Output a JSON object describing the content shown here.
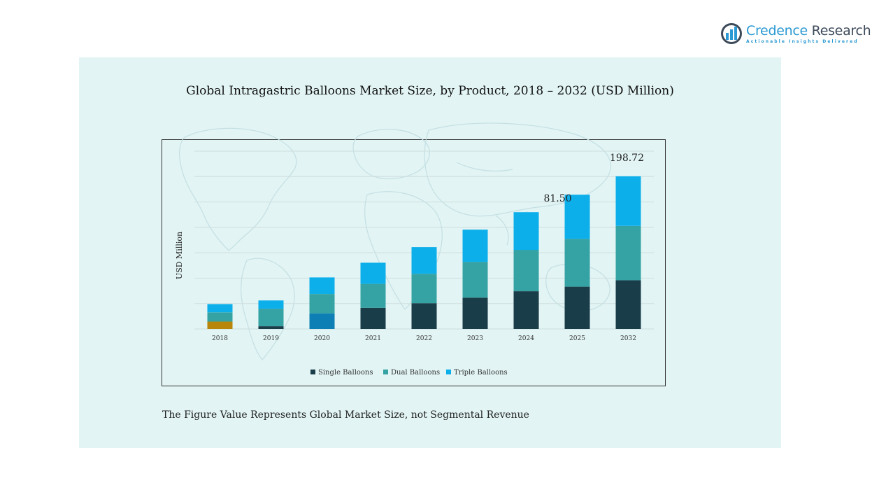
{
  "logo": {
    "name_part1": "Credence",
    "name_part2": "Research",
    "tagline": "Actionable Insights Delivered",
    "icon": "bar-chart-circle-icon"
  },
  "footnote": "The Figure Value Represents Global Market Size, not Segmental Revenue",
  "colors": {
    "panel": "#e2f4f4",
    "single": "#1a3d4a",
    "dual": "#35a3a3",
    "triple": "#0dafea",
    "single_2018": "#b8860b",
    "single_2020": "#0e7fb5"
  },
  "chart_data": {
    "type": "bar",
    "stacked": true,
    "title": "Global Intragastric Balloons Market Size, by Product, 2018 – 2032 (USD Million)",
    "xlabel": "",
    "ylabel": "USD Million",
    "categories": [
      "2018",
      "2019",
      "2020",
      "2021",
      "2022",
      "2023",
      "2024",
      "2025",
      "2032"
    ],
    "series": [
      {
        "name": "Single Balloons",
        "values": [
          8,
          3,
          17,
          23,
          28,
          34,
          41,
          46,
          53
        ]
      },
      {
        "name": "Dual Balloons",
        "values": [
          10,
          19,
          21,
          26,
          32,
          39,
          45,
          52,
          59
        ]
      },
      {
        "name": "Triple Balloons",
        "values": [
          9,
          9,
          18,
          23,
          29,
          35,
          41,
          48,
          54
        ]
      }
    ],
    "annotations": [
      {
        "category": "2025",
        "label": "81.50"
      },
      {
        "category": "2032",
        "label": "198.72"
      }
    ],
    "ylim": [
      0,
      204
    ],
    "grid": true,
    "legend": "bottom-center",
    "background": "world-map"
  }
}
